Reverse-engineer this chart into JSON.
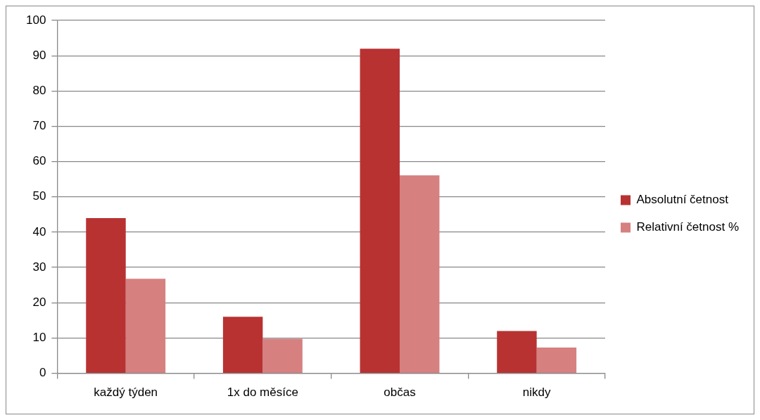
{
  "chart_data": {
    "type": "bar",
    "categories": [
      "každý týden",
      "1x do měsíce",
      "občas",
      "nikdy"
    ],
    "series": [
      {
        "name": "Absolutní četnost",
        "color": "#b83232",
        "values": [
          44,
          16,
          92,
          12
        ]
      },
      {
        "name": "Relativní četnost %",
        "color": "#d68080",
        "values": [
          26.8,
          9.8,
          56.1,
          7.3
        ]
      }
    ],
    "ylim": [
      0,
      100
    ],
    "yticks": [
      0,
      10,
      20,
      30,
      40,
      50,
      60,
      70,
      80,
      90,
      100
    ],
    "grid": "y",
    "legend": "right"
  }
}
